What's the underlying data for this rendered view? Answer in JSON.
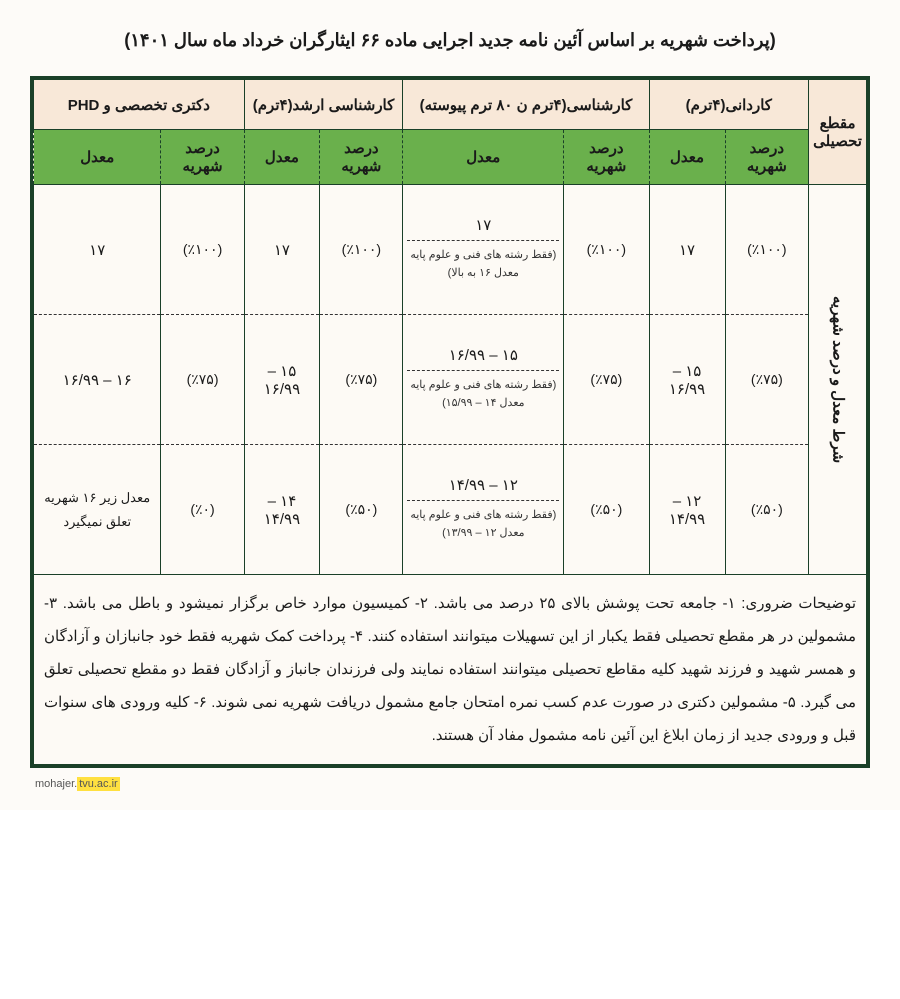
{
  "title": "(پرداخت شهریه بر اساس آئین نامه جدید اجرایی ماده ۶۶ ایثارگران خرداد ماه سال ۱۴۰۱)",
  "headers": {
    "level_label": "مقطع تحصیلی",
    "side_label": "شرط معدل و درصد شهریه",
    "cols": [
      {
        "title": "کاردانی(۴ترم)",
        "sub1": "درصد شهریه",
        "sub2": "معدل"
      },
      {
        "title": "کارشناسی(۴ترم ن ۸۰ ترم پیوسته)",
        "sub1": "درصد شهریه",
        "sub2": "معدل"
      },
      {
        "title": "کارشناسی ارشد(۴ترم)",
        "sub1": "درصد شهریه",
        "sub2": "معدل"
      },
      {
        "title": "دکتری تخصصی و PHD",
        "sub1": "درصد شهریه",
        "sub2": "معدل"
      }
    ]
  },
  "rows": [
    {
      "c1_pct": "(٪۱۰۰)",
      "c1_gpa": "۱۷",
      "c2_pct": "(٪۱۰۰)",
      "c2_gpa_main": "۱۷",
      "c2_gpa_sub": "(فقط رشته های فنی و علوم پایه معدل ۱۶ به بالا)",
      "c3_pct": "(٪۱۰۰)",
      "c3_gpa": "۱۷",
      "c4_pct": "(٪۱۰۰)",
      "c4_gpa": "۱۷"
    },
    {
      "c1_pct": "(٪۷۵)",
      "c1_gpa": "۱۵ – ۱۶/۹۹",
      "c2_pct": "(٪۷۵)",
      "c2_gpa_main": "۱۵ – ۱۶/۹۹",
      "c2_gpa_sub": "(فقط رشته های فنی و علوم پایه معدل ۱۴ – ۱۵/۹۹)",
      "c3_pct": "(٪۷۵)",
      "c3_gpa": "۱۵ – ۱۶/۹۹",
      "c4_pct": "(٪۷۵)",
      "c4_gpa": "۱۶ – ۱۶/۹۹"
    },
    {
      "c1_pct": "(٪۵۰)",
      "c1_gpa": "۱۲ – ۱۴/۹۹",
      "c2_pct": "(٪۵۰)",
      "c2_gpa_main": "۱۲ – ۱۴/۹۹",
      "c2_gpa_sub": "(فقط رشته های فنی و علوم پایه معدل ۱۲ – ۱۳/۹۹)",
      "c3_pct": "(٪۵۰)",
      "c3_gpa": "۱۴ – ۱۴/۹۹",
      "c4_pct": "(٪۰)",
      "c4_gpa": "معدل زیر ۱۶ شهریه تعلق نمیگیرد"
    }
  ],
  "notes": "توضیحات ضروری: ۱- جامعه تحت پوشش بالای ۲۵ درصد می باشد. ۲- کمیسیون موارد خاص برگزار نمیشود و باطل می باشد. ۳- مشمولین در هر مقطع تحصیلی فقط یکبار از این تسهیلات میتوانند استفاده کنند. ۴- پرداخت کمک شهریه فقط خود جانبازان و آزادگان و همسر شهید و فرزند شهید کلیه مقاطع تحصیلی میتوانند استفاده نمایند ولی فرزندان جانباز و آزادگان فقط دو مقطع تحصیلی تعلق می گیرد. ۵- مشمولین دکتری در صورت عدم کسب نمره امتحان جامع مشمول دریافت شهریه نمی شوند. ۶- کلیه ورودی های سنوات قبل و ورودی جدید از زمان ابلاغ این آئین نامه مشمول مفاد آن هستند.",
  "footer_pre": "mohajer.",
  "footer_hl": "tvu.ac.ir"
}
